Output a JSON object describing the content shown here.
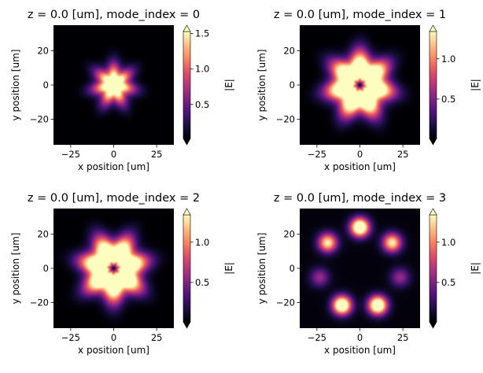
{
  "chart_data": [
    {
      "type": "heatmap",
      "title": "z = 0.0 [um], mode_index = 0",
      "xlabel": "x position [um]",
      "ylabel": "y position [um]",
      "xlim": [
        -35,
        35
      ],
      "ylim": [
        -35,
        35
      ],
      "xticks": [
        -25,
        0,
        25
      ],
      "xtick_labels": [
        "−25",
        "0",
        "25"
      ],
      "yticks": [
        -20,
        0,
        20
      ],
      "ytick_labels": [
        "−20",
        "0",
        "20"
      ],
      "colormap": "magma",
      "colorbar": {
        "label": "|E|",
        "range": [
          0.02,
          1.53
        ],
        "ticks": [
          0.5,
          1.0,
          1.5
        ],
        "tick_labels": [
          "0.5",
          "1.0",
          "1.5"
        ],
        "extend": "both"
      },
      "field": {
        "pattern": "central spot, 7-fold star",
        "peak": 2.2,
        "width": 10,
        "rotation_deg": 0
      }
    },
    {
      "type": "heatmap",
      "title": "z = 0.0 [um], mode_index = 1",
      "xlabel": "x position [um]",
      "ylabel": "y position [um]",
      "xlim": [
        -35,
        35
      ],
      "ylim": [
        -35,
        35
      ],
      "xticks": [
        -25,
        0,
        25
      ],
      "xtick_labels": [
        "−25",
        "0",
        "25"
      ],
      "yticks": [
        -20,
        0,
        20
      ],
      "ytick_labels": [
        "−20",
        "0",
        "20"
      ],
      "colormap": "magma",
      "colorbar": {
        "label": "|E|",
        "range": [
          0.01,
          1.34
        ],
        "ticks": [
          0.5,
          1.0
        ],
        "tick_labels": [
          "0.5",
          "1.0"
        ],
        "extend": "both"
      },
      "field": {
        "pattern": "ring with central null, 7-fold star",
        "peak": 4.5,
        "width": 12,
        "rotation_deg": 0
      }
    },
    {
      "type": "heatmap",
      "title": "z = 0.0 [um], mode_index = 2",
      "xlabel": "x position [um]",
      "ylabel": "y position [um]",
      "xlim": [
        -35,
        35
      ],
      "ylim": [
        -35,
        35
      ],
      "xticks": [
        -25,
        0,
        25
      ],
      "xtick_labels": [
        "−25",
        "0",
        "25"
      ],
      "yticks": [
        -20,
        0,
        20
      ],
      "ytick_labels": [
        "−20",
        "0",
        "20"
      ],
      "colormap": "magma",
      "colorbar": {
        "label": "|E|",
        "range": [
          0.01,
          1.34
        ],
        "ticks": [
          0.5,
          1.0
        ],
        "tick_labels": [
          "0.5",
          "1.0"
        ],
        "extend": "both"
      },
      "field": {
        "pattern": "ring with central null, 7-fold star",
        "peak": 4.5,
        "width": 12,
        "rotation_deg": 25.7
      }
    },
    {
      "type": "heatmap",
      "title": "z = 0.0 [um], mode_index = 3",
      "xlabel": "x position [um]",
      "ylabel": "y position [um]",
      "xlim": [
        -35,
        35
      ],
      "ylim": [
        -35,
        35
      ],
      "xticks": [
        -25,
        0,
        25
      ],
      "xtick_labels": [
        "−25",
        "0",
        "25"
      ],
      "yticks": [
        -20,
        0,
        20
      ],
      "ytick_labels": [
        "−20",
        "0",
        "20"
      ],
      "colormap": "magma",
      "colorbar": {
        "label": "|E|",
        "range": [
          0.01,
          1.34
        ],
        "ticks": [
          0.5,
          1.0
        ],
        "tick_labels": [
          "0.5",
          "1.0"
        ],
        "extend": "both"
      },
      "field": {
        "pattern": "seven outer-core spots",
        "spots": [
          {
            "x": 0,
            "y": 24,
            "peak": 1.8
          },
          {
            "x": 18.7,
            "y": 15,
            "peak": 1.3
          },
          {
            "x": -18.7,
            "y": 15,
            "peak": 1.3
          },
          {
            "x": 23.4,
            "y": -5.3,
            "peak": 0.55
          },
          {
            "x": -23.4,
            "y": -5.3,
            "peak": 0.55
          },
          {
            "x": 10.4,
            "y": -21.6,
            "peak": 1.8
          },
          {
            "x": -10.4,
            "y": -21.6,
            "peak": 1.8
          }
        ]
      }
    }
  ]
}
